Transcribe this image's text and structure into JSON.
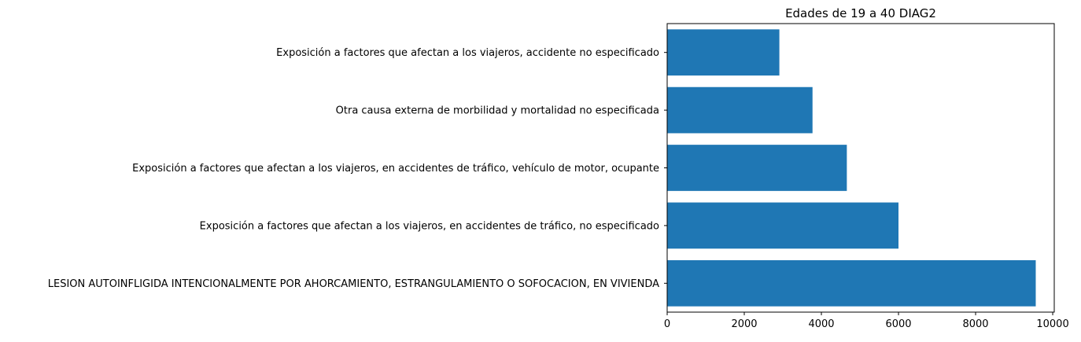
{
  "chart_data": {
    "type": "bar",
    "orientation": "horizontal",
    "title": "Edades de 19 a 40 DIAG2",
    "xlabel": "",
    "ylabel": "",
    "categories": [
      "LESION AUTOINFLIGIDA INTENCIONALMENTE POR AHORCAMIENTO, ESTRANGULAMIENTO O SOFOCACION, EN VIVIENDA",
      "Exposición a factores que afectan a los viajeros, en accidentes de tráfico, no especificado",
      "Exposición a factores que afectan a los viajeros, en accidentes de tráfico, vehículo de motor, ocupante",
      "Otra causa externa de morbilidad y mortalidad no especificada",
      "Exposición a factores que afectan a los viajeros, accidente no especificado"
    ],
    "values": [
      9560,
      6000,
      4660,
      3770,
      2910
    ],
    "xlim": [
      0,
      10040
    ],
    "xticks": [
      0,
      2000,
      4000,
      6000,
      8000,
      10000
    ],
    "xtick_labels": [
      "0",
      "2000",
      "4000",
      "6000",
      "8000",
      "10000"
    ],
    "grid": false,
    "legend": "none",
    "bar_color": "#1f77b4"
  }
}
